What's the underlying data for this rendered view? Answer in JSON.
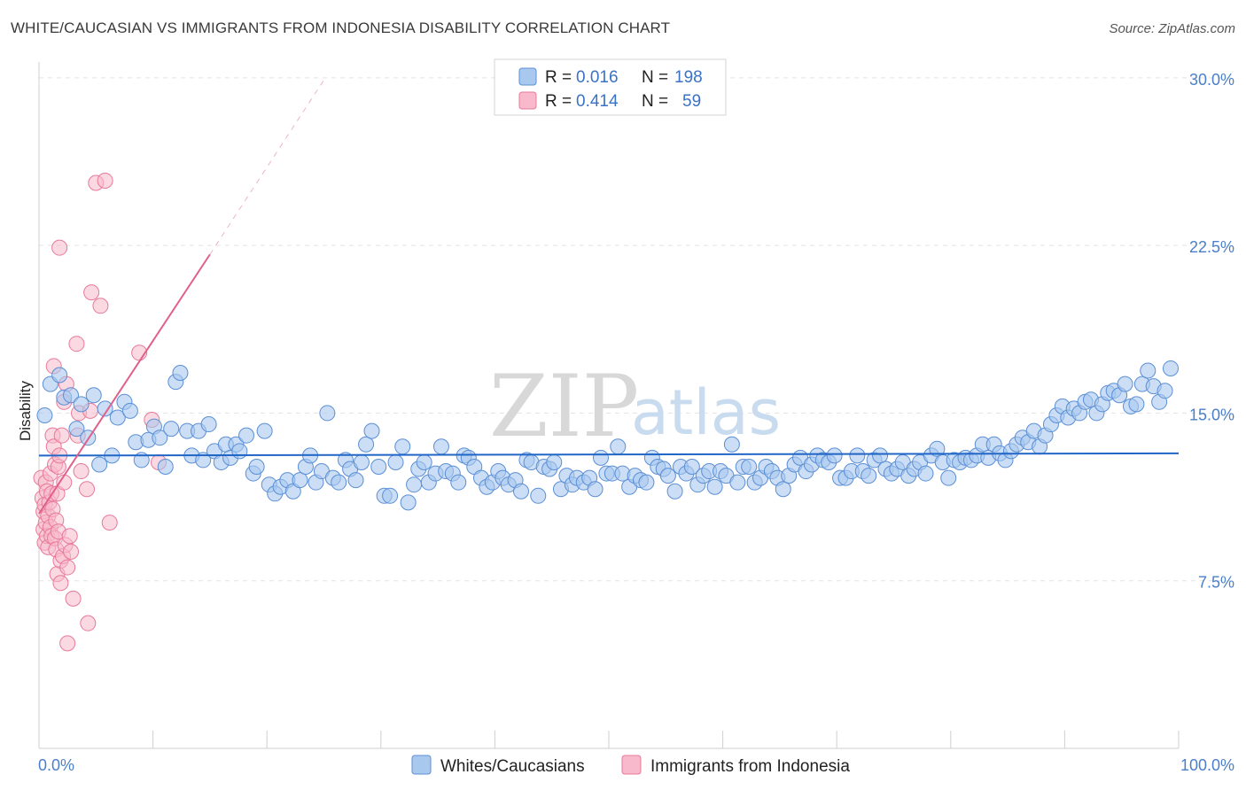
{
  "title": "WHITE/CAUCASIAN VS IMMIGRANTS FROM INDONESIA DISABILITY CORRELATION CHART",
  "source": "Source: ZipAtlas.com",
  "watermark": {
    "zip": "ZIP",
    "atlas": "atlas"
  },
  "colors": {
    "blue_fill": "#a9c8ee",
    "blue_stroke": "#5b8fd6",
    "blue_line": "#2166c7",
    "pink_fill": "#f7b9cb",
    "pink_stroke": "#e8799b",
    "pink_line": "#e0608a",
    "grid": "#e3e3e3",
    "tick_text": "#4a7fc9"
  },
  "legend": {
    "rows": [
      {
        "r_label": "R =",
        "r_value": "0.016",
        "n_label": "N =",
        "n_value": "198"
      },
      {
        "r_label": "R =",
        "r_value": "0.414",
        "n_label": "N =",
        "n_value": "59"
      }
    ]
  },
  "bottom_legend": [
    "Whites/Caucasians",
    "Immigrants from Indonesia"
  ],
  "chart_data": {
    "type": "scatter",
    "title": "WHITE/CAUCASIAN VS IMMIGRANTS FROM INDONESIA DISABILITY CORRELATION CHART",
    "xlabel": "",
    "ylabel": "Disability",
    "xlim": [
      0,
      100
    ],
    "ylim": [
      0,
      31.5
    ],
    "x_tick_labels": [
      "0.0%",
      "100.0%"
    ],
    "y_ticks": [
      7.5,
      15.0,
      22.5,
      30.0
    ],
    "y_tick_labels": [
      "7.5%",
      "15.0%",
      "22.5%",
      "30.0%"
    ],
    "grid": true,
    "series": [
      {
        "name": "Whites/Caucasians",
        "color": "#a9c8ee",
        "trend": {
          "x": [
            0,
            100
          ],
          "y": [
            13.1,
            13.2
          ],
          "style": "solid"
        },
        "points": [
          [
            0.5,
            14.9
          ],
          [
            1.0,
            16.3
          ],
          [
            1.8,
            16.7
          ],
          [
            2.2,
            15.7
          ],
          [
            2.8,
            15.8
          ],
          [
            3.3,
            14.3
          ],
          [
            3.7,
            15.4
          ],
          [
            4.3,
            13.9
          ],
          [
            4.8,
            15.8
          ],
          [
            5.3,
            12.7
          ],
          [
            5.8,
            15.2
          ],
          [
            6.4,
            13.1
          ],
          [
            6.9,
            14.8
          ],
          [
            7.5,
            15.5
          ],
          [
            8.0,
            15.1
          ],
          [
            8.5,
            13.7
          ],
          [
            9.0,
            12.9
          ],
          [
            9.6,
            13.8
          ],
          [
            10.1,
            14.4
          ],
          [
            10.6,
            13.9
          ],
          [
            11.1,
            12.6
          ],
          [
            11.6,
            14.3
          ],
          [
            12.0,
            16.4
          ],
          [
            12.4,
            16.8
          ],
          [
            13.0,
            14.2
          ],
          [
            13.4,
            13.1
          ],
          [
            14.0,
            14.2
          ],
          [
            14.4,
            12.9
          ],
          [
            14.9,
            14.5
          ],
          [
            15.4,
            13.3
          ],
          [
            16.0,
            12.8
          ],
          [
            16.4,
            13.6
          ],
          [
            16.8,
            13.0
          ],
          [
            17.3,
            13.6
          ],
          [
            17.6,
            13.3
          ],
          [
            18.2,
            14.0
          ],
          [
            18.8,
            12.3
          ],
          [
            19.1,
            12.6
          ],
          [
            19.8,
            14.2
          ],
          [
            20.2,
            11.8
          ],
          [
            20.7,
            11.4
          ],
          [
            21.2,
            11.7
          ],
          [
            21.8,
            12.0
          ],
          [
            22.3,
            11.5
          ],
          [
            22.9,
            12.0
          ],
          [
            23.4,
            12.6
          ],
          [
            23.8,
            13.1
          ],
          [
            24.3,
            11.9
          ],
          [
            24.8,
            12.4
          ],
          [
            25.3,
            15.0
          ],
          [
            25.8,
            12.1
          ],
          [
            26.3,
            11.9
          ],
          [
            26.9,
            12.9
          ],
          [
            27.3,
            12.5
          ],
          [
            27.8,
            12.0
          ],
          [
            28.3,
            12.8
          ],
          [
            28.7,
            13.6
          ],
          [
            29.2,
            14.2
          ],
          [
            29.8,
            12.6
          ],
          [
            30.3,
            11.3
          ],
          [
            30.8,
            11.3
          ],
          [
            31.3,
            12.8
          ],
          [
            31.9,
            13.5
          ],
          [
            32.4,
            11.0
          ],
          [
            32.9,
            11.8
          ],
          [
            33.3,
            12.5
          ],
          [
            33.8,
            12.8
          ],
          [
            34.2,
            11.9
          ],
          [
            34.8,
            12.3
          ],
          [
            35.3,
            13.5
          ],
          [
            35.7,
            12.4
          ],
          [
            36.3,
            12.3
          ],
          [
            36.8,
            11.9
          ],
          [
            37.3,
            13.1
          ],
          [
            37.7,
            13.0
          ],
          [
            38.2,
            12.6
          ],
          [
            38.8,
            12.1
          ],
          [
            39.3,
            11.7
          ],
          [
            39.8,
            11.9
          ],
          [
            40.3,
            12.4
          ],
          [
            40.7,
            12.1
          ],
          [
            41.2,
            11.8
          ],
          [
            41.8,
            12.0
          ],
          [
            42.3,
            11.5
          ],
          [
            42.8,
            12.9
          ],
          [
            43.2,
            12.8
          ],
          [
            43.8,
            11.3
          ],
          [
            44.3,
            12.6
          ],
          [
            44.8,
            12.5
          ],
          [
            45.2,
            12.8
          ],
          [
            45.8,
            11.6
          ],
          [
            46.3,
            12.2
          ],
          [
            46.8,
            11.8
          ],
          [
            47.2,
            12.1
          ],
          [
            47.8,
            11.9
          ],
          [
            48.3,
            12.1
          ],
          [
            48.8,
            11.6
          ],
          [
            49.3,
            13.0
          ],
          [
            49.8,
            12.3
          ],
          [
            50.3,
            12.3
          ],
          [
            50.8,
            13.5
          ],
          [
            51.2,
            12.3
          ],
          [
            51.8,
            11.7
          ],
          [
            52.3,
            12.2
          ],
          [
            52.8,
            12.0
          ],
          [
            53.3,
            11.9
          ],
          [
            53.8,
            13.0
          ],
          [
            54.3,
            12.6
          ],
          [
            54.8,
            12.5
          ],
          [
            55.2,
            12.2
          ],
          [
            55.8,
            11.5
          ],
          [
            56.3,
            12.6
          ],
          [
            56.8,
            12.3
          ],
          [
            57.3,
            12.6
          ],
          [
            57.8,
            11.8
          ],
          [
            58.3,
            12.2
          ],
          [
            58.8,
            12.4
          ],
          [
            59.3,
            11.7
          ],
          [
            59.8,
            12.4
          ],
          [
            60.3,
            12.2
          ],
          [
            60.8,
            13.6
          ],
          [
            61.3,
            11.9
          ],
          [
            61.8,
            12.6
          ],
          [
            62.3,
            12.6
          ],
          [
            62.8,
            11.9
          ],
          [
            63.3,
            12.1
          ],
          [
            63.8,
            12.6
          ],
          [
            64.3,
            12.4
          ],
          [
            64.8,
            12.1
          ],
          [
            65.3,
            11.6
          ],
          [
            65.8,
            12.2
          ],
          [
            66.3,
            12.7
          ],
          [
            66.8,
            13.0
          ],
          [
            67.3,
            12.4
          ],
          [
            67.8,
            12.7
          ],
          [
            68.3,
            13.1
          ],
          [
            68.8,
            12.9
          ],
          [
            69.3,
            12.8
          ],
          [
            69.8,
            13.1
          ],
          [
            70.3,
            12.1
          ],
          [
            70.8,
            12.1
          ],
          [
            71.3,
            12.4
          ],
          [
            71.8,
            13.1
          ],
          [
            72.3,
            12.4
          ],
          [
            72.8,
            12.2
          ],
          [
            73.3,
            12.9
          ],
          [
            73.8,
            13.1
          ],
          [
            74.3,
            12.5
          ],
          [
            74.8,
            12.3
          ],
          [
            75.3,
            12.5
          ],
          [
            75.8,
            12.8
          ],
          [
            76.3,
            12.2
          ],
          [
            76.8,
            12.5
          ],
          [
            77.3,
            12.8
          ],
          [
            77.8,
            12.3
          ],
          [
            78.3,
            13.1
          ],
          [
            78.8,
            13.4
          ],
          [
            79.3,
            12.8
          ],
          [
            79.8,
            12.1
          ],
          [
            80.3,
            12.9
          ],
          [
            80.8,
            12.8
          ],
          [
            81.3,
            13.0
          ],
          [
            81.8,
            12.9
          ],
          [
            82.3,
            13.1
          ],
          [
            82.8,
            13.6
          ],
          [
            83.3,
            13.0
          ],
          [
            83.8,
            13.6
          ],
          [
            84.3,
            13.2
          ],
          [
            84.8,
            12.9
          ],
          [
            85.3,
            13.3
          ],
          [
            85.8,
            13.6
          ],
          [
            86.3,
            13.9
          ],
          [
            86.8,
            13.7
          ],
          [
            87.3,
            14.2
          ],
          [
            87.8,
            13.5
          ],
          [
            88.3,
            14.0
          ],
          [
            88.8,
            14.5
          ],
          [
            89.3,
            14.9
          ],
          [
            89.8,
            15.3
          ],
          [
            90.3,
            14.8
          ],
          [
            90.8,
            15.2
          ],
          [
            91.3,
            15.0
          ],
          [
            91.8,
            15.5
          ],
          [
            92.3,
            15.6
          ],
          [
            92.8,
            15.0
          ],
          [
            93.3,
            15.4
          ],
          [
            93.8,
            15.9
          ],
          [
            94.3,
            16.0
          ],
          [
            94.8,
            15.8
          ],
          [
            95.3,
            16.3
          ],
          [
            95.8,
            15.3
          ],
          [
            96.3,
            15.4
          ],
          [
            96.8,
            16.3
          ],
          [
            97.3,
            16.9
          ],
          [
            97.8,
            16.2
          ],
          [
            98.3,
            15.5
          ],
          [
            98.8,
            16.0
          ],
          [
            99.3,
            17.0
          ]
        ]
      },
      {
        "name": "Immigrants from Indonesia",
        "color": "#f7b9cb",
        "trend": {
          "x": [
            0,
            15
          ],
          "y": [
            10.5,
            22.1
          ],
          "style": "solid",
          "extension_x": [
            15,
            25
          ],
          "extension_y": [
            22.1,
            29.9
          ]
        },
        "points": [
          [
            0.2,
            12.1
          ],
          [
            0.3,
            11.2
          ],
          [
            0.4,
            10.6
          ],
          [
            0.4,
            9.8
          ],
          [
            0.5,
            9.2
          ],
          [
            0.5,
            10.9
          ],
          [
            0.6,
            11.9
          ],
          [
            0.6,
            10.1
          ],
          [
            0.7,
            9.5
          ],
          [
            0.7,
            11.5
          ],
          [
            0.8,
            10.4
          ],
          [
            0.8,
            9.0
          ],
          [
            0.9,
            11.0
          ],
          [
            1.0,
            9.9
          ],
          [
            1.0,
            12.3
          ],
          [
            1.1,
            9.5
          ],
          [
            1.1,
            11.4
          ],
          [
            1.2,
            10.7
          ],
          [
            1.2,
            14.0
          ],
          [
            1.3,
            17.1
          ],
          [
            1.3,
            13.5
          ],
          [
            1.4,
            9.4
          ],
          [
            1.4,
            12.7
          ],
          [
            1.5,
            10.2
          ],
          [
            1.5,
            8.9
          ],
          [
            1.6,
            11.4
          ],
          [
            1.6,
            7.8
          ],
          [
            1.7,
            9.7
          ],
          [
            1.7,
            12.6
          ],
          [
            1.8,
            13.1
          ],
          [
            1.8,
            22.4
          ],
          [
            1.9,
            8.4
          ],
          [
            1.9,
            7.4
          ],
          [
            2.0,
            14.0
          ],
          [
            2.1,
            8.6
          ],
          [
            2.2,
            15.5
          ],
          [
            2.2,
            11.9
          ],
          [
            2.3,
            9.1
          ],
          [
            2.4,
            16.3
          ],
          [
            2.5,
            4.7
          ],
          [
            2.5,
            8.1
          ],
          [
            2.7,
            9.5
          ],
          [
            2.8,
            8.8
          ],
          [
            3.0,
            6.7
          ],
          [
            3.3,
            18.1
          ],
          [
            3.4,
            14.0
          ],
          [
            3.5,
            15.0
          ],
          [
            3.7,
            12.4
          ],
          [
            4.2,
            11.6
          ],
          [
            4.3,
            5.6
          ],
          [
            4.5,
            15.1
          ],
          [
            4.6,
            20.4
          ],
          [
            5.0,
            25.3
          ],
          [
            5.4,
            19.8
          ],
          [
            5.8,
            25.4
          ],
          [
            6.2,
            10.1
          ],
          [
            8.8,
            17.7
          ],
          [
            9.9,
            14.7
          ],
          [
            10.5,
            12.8
          ]
        ]
      }
    ]
  }
}
